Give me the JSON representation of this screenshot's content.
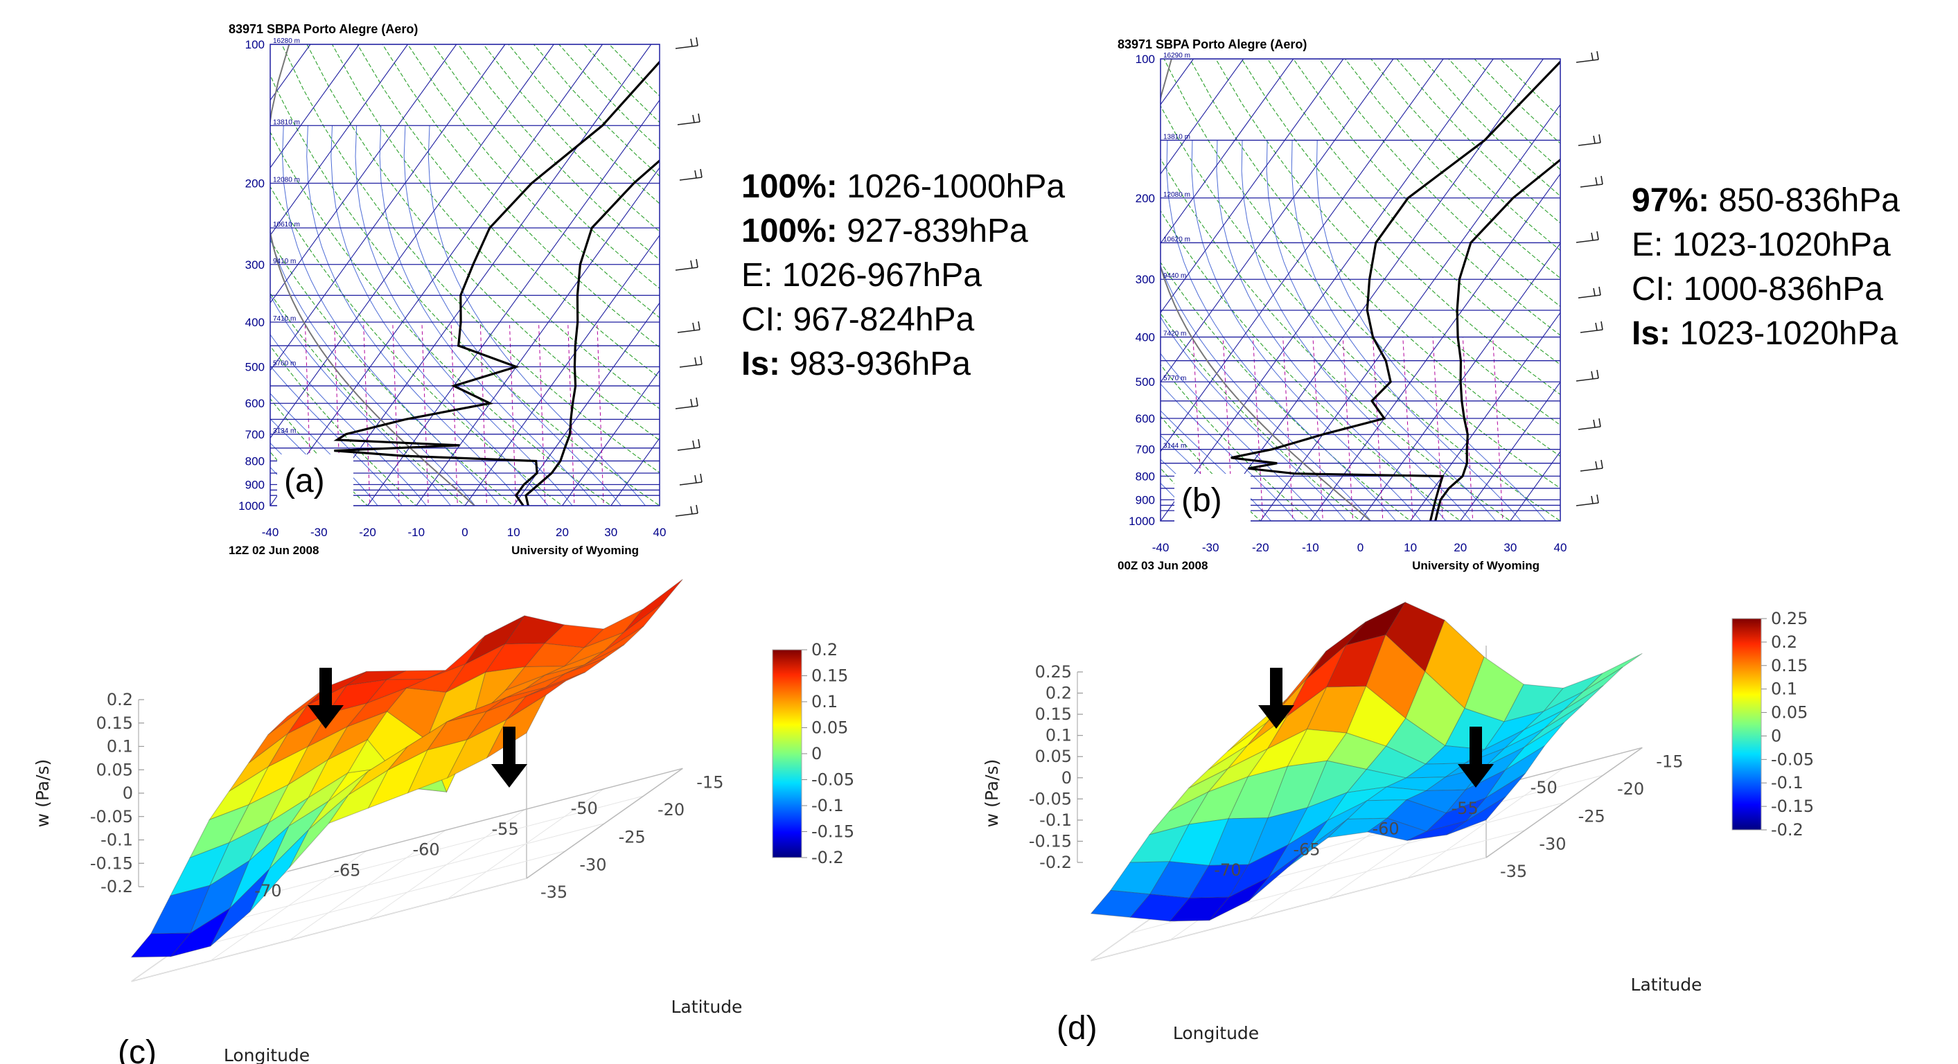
{
  "chart_data": [
    {
      "type": "skew-t",
      "panel": "(a)",
      "title": "83971 SBPA Porto Alegre (Aero)",
      "footer_left": "12Z 02 Jun 2008",
      "footer_right": "University of Wyoming",
      "pressure_ticks": [
        "100",
        "200",
        "300",
        "400",
        "500",
        "600",
        "700",
        "800",
        "900",
        "1000"
      ],
      "temperature_ticks": [
        "-40",
        "-30",
        "-20",
        "-10",
        "0",
        "10",
        "20",
        "30",
        "40"
      ],
      "height_labels": [
        "16280 m",
        "13810 m",
        "12080 m",
        "10610 m",
        "9410 m",
        "7410 m",
        "5760 m",
        "3134 m"
      ],
      "temperature_profile": [
        [
          1000,
          13
        ],
        [
          950,
          11
        ],
        [
          900,
          12
        ],
        [
          850,
          13
        ],
        [
          800,
          13
        ],
        [
          750,
          12
        ],
        [
          700,
          11
        ],
        [
          650,
          9
        ],
        [
          600,
          7
        ],
        [
          550,
          5
        ],
        [
          500,
          2
        ],
        [
          450,
          -1
        ],
        [
          400,
          -4
        ],
        [
          350,
          -8
        ],
        [
          300,
          -12
        ],
        [
          250,
          -15
        ],
        [
          200,
          -13
        ],
        [
          150,
          -8
        ],
        [
          100,
          -3
        ]
      ],
      "dewpoint_profile": [
        [
          1000,
          12
        ],
        [
          950,
          9
        ],
        [
          900,
          9
        ],
        [
          850,
          10
        ],
        [
          800,
          8
        ],
        [
          780,
          -20
        ],
        [
          760,
          -35
        ],
        [
          740,
          -10
        ],
        [
          720,
          -36
        ],
        [
          700,
          -35
        ],
        [
          650,
          -25
        ],
        [
          600,
          -10
        ],
        [
          550,
          -20
        ],
        [
          500,
          -10
        ],
        [
          450,
          -25
        ],
        [
          400,
          -28
        ],
        [
          350,
          -32
        ],
        [
          300,
          -34
        ],
        [
          250,
          -36
        ],
        [
          200,
          -34
        ],
        [
          150,
          -28
        ],
        [
          100,
          -25
        ]
      ],
      "annotations": [
        {
          "label": "100%:",
          "text": " 1026-1000hPa",
          "bold": true
        },
        {
          "label": "100%:",
          "text": " 927-839hPa",
          "bold": true
        },
        {
          "label": "E:",
          "text": " 1026-967hPa",
          "bold": false
        },
        {
          "label": "CI:",
          "text": " 967-824hPa",
          "bold": false
        },
        {
          "label": "Is:",
          "text": " 983-936hPa",
          "bold": true
        }
      ]
    },
    {
      "type": "skew-t",
      "panel": "(b)",
      "title": "83971 SBPA Porto Alegre (Aero)",
      "footer_left": "00Z 03 Jun 2008",
      "footer_right": "University of Wyoming",
      "pressure_ticks": [
        "100",
        "200",
        "300",
        "400",
        "500",
        "600",
        "700",
        "800",
        "900",
        "1000"
      ],
      "temperature_ticks": [
        "-40",
        "-30",
        "-20",
        "-10",
        "0",
        "10",
        "20",
        "30",
        "40"
      ],
      "height_labels": [
        "16290 m",
        "13810 m",
        "12080 m",
        "10620 m",
        "9440 m",
        "7420 m",
        "5770 m",
        "3144 m"
      ],
      "temperature_profile": [
        [
          1000,
          15
        ],
        [
          950,
          14
        ],
        [
          900,
          13
        ],
        [
          850,
          13
        ],
        [
          800,
          14
        ],
        [
          750,
          13
        ],
        [
          700,
          11
        ],
        [
          650,
          9
        ],
        [
          600,
          6
        ],
        [
          550,
          3
        ],
        [
          500,
          0
        ],
        [
          450,
          -3
        ],
        [
          400,
          -7
        ],
        [
          350,
          -11
        ],
        [
          300,
          -15
        ],
        [
          250,
          -18
        ],
        [
          200,
          -16
        ],
        [
          150,
          -10
        ],
        [
          100,
          -4
        ]
      ],
      "dewpoint_profile": [
        [
          1000,
          14
        ],
        [
          950,
          13
        ],
        [
          900,
          12
        ],
        [
          850,
          11
        ],
        [
          800,
          10
        ],
        [
          790,
          -20
        ],
        [
          770,
          -30
        ],
        [
          750,
          -25
        ],
        [
          730,
          -35
        ],
        [
          700,
          -28
        ],
        [
          650,
          -20
        ],
        [
          600,
          -10
        ],
        [
          550,
          -15
        ],
        [
          500,
          -14
        ],
        [
          450,
          -18
        ],
        [
          400,
          -24
        ],
        [
          350,
          -29
        ],
        [
          300,
          -33
        ],
        [
          250,
          -37
        ],
        [
          200,
          -37
        ],
        [
          150,
          -30
        ],
        [
          100,
          -26
        ]
      ],
      "annotations": [
        {
          "label": "97%:",
          "text": " 850-836hPa",
          "bold": true
        },
        {
          "label": "E:",
          "text": " 1023-1020hPa",
          "bold": false
        },
        {
          "label": "CI:",
          "text": " 1000-836hPa",
          "bold": false
        },
        {
          "label": "Is:",
          "text": " 1023-1020hPa",
          "bold": true
        }
      ]
    },
    {
      "type": "surface3d",
      "panel": "(c)",
      "zlabel": "w (Pa/s)",
      "xlabel": "Longitude",
      "ylabel": "Latitude",
      "zticks": [
        "0.2",
        "0.15",
        "0.1",
        "0.05",
        "0",
        "-0.05",
        "-0.1",
        "-0.15",
        "-0.2"
      ],
      "xticks": [
        "-70",
        "-65",
        "-60",
        "-55",
        "-50"
      ],
      "yticks": [
        "-15",
        "-20",
        "-25",
        "-30",
        "-35"
      ],
      "colorbar_ticks": [
        "0.2",
        "0.15",
        "0.1",
        "0.05",
        "0",
        "-0.05",
        "-0.1",
        "-0.15",
        "-0.2"
      ],
      "zlim": [
        -0.2,
        0.2
      ],
      "surface": {
        "type": "grid",
        "longitudes": [
          -70,
          -67.5,
          -65,
          -62.5,
          -60,
          -57.5,
          -55,
          -52.5,
          -50,
          -47.5,
          -45
        ],
        "latitudes": [
          -15,
          -17.5,
          -20,
          -22.5,
          -25,
          -27.5,
          -30,
          -32.5,
          -35
        ],
        "w": [
          [
            0.12,
            0.16,
            0.17,
            0.15,
            0.13,
            0.18,
            0.2,
            0.16,
            0.13,
            0.15,
            0.19
          ],
          [
            0.11,
            0.15,
            0.17,
            0.16,
            0.14,
            0.15,
            0.17,
            0.15,
            0.12,
            0.13,
            0.17
          ],
          [
            0.08,
            0.12,
            0.14,
            0.14,
            0.15,
            0.12,
            0.14,
            0.13,
            0.11,
            0.12,
            0.15
          ],
          [
            0.05,
            0.08,
            0.1,
            0.12,
            0.13,
            0.05,
            0.02,
            0.11,
            0.12,
            0.12,
            0.14
          ],
          [
            0.02,
            0.03,
            0.05,
            0.08,
            0.1,
            -0.02,
            -0.05,
            0.1,
            0.12,
            0.13,
            0.14
          ],
          [
            -0.03,
            -0.02,
            0.0,
            0.03,
            0.06,
            0.05,
            0.08,
            0.12,
            0.13,
            0.13,
            0.14
          ],
          [
            -0.08,
            -0.08,
            -0.05,
            0.0,
            0.03,
            0.07,
            0.1,
            0.13,
            0.13,
            0.14,
            0.15
          ],
          [
            -0.13,
            -0.15,
            -0.12,
            -0.06,
            0.0,
            0.05,
            0.08,
            0.1,
            0.1,
            0.12,
            0.15
          ],
          [
            -0.15,
            -0.17,
            -0.17,
            -0.12,
            -0.05,
            0.02,
            0.03,
            0.04,
            0.05,
            0.07,
            0.1
          ]
        ]
      },
      "arrows": 2
    },
    {
      "type": "surface3d",
      "panel": "(d)",
      "zlabel": "w (Pa/s)",
      "xlabel": "Longitude",
      "ylabel": "Latitude",
      "zticks": [
        "0.25",
        "0.2",
        "0.15",
        "0.1",
        "0.05",
        "0",
        "-0.05",
        "-0.1",
        "-0.15",
        "-0.2"
      ],
      "xticks": [
        "-70",
        "-65",
        "-60",
        "-55",
        "-50"
      ],
      "yticks": [
        "-15",
        "-20",
        "-25",
        "-30",
        "-35"
      ],
      "colorbar_ticks": [
        "0.25",
        "0.2",
        "0.15",
        "0.1",
        "0.05",
        "0",
        "-0.05",
        "-0.1",
        "-0.15",
        "-0.2"
      ],
      "zlim": [
        -0.2,
        0.25
      ],
      "surface": {
        "type": "grid",
        "longitudes": [
          -70,
          -67.5,
          -65,
          -62.5,
          -60,
          -57.5,
          -55,
          -52.5,
          -50,
          -47.5,
          -45
        ],
        "latitudes": [
          -15,
          -17.5,
          -20,
          -22.5,
          -25,
          -27.5,
          -30,
          -32.5,
          -35
        ],
        "w": [
          [
            0.05,
            0.1,
            0.18,
            0.22,
            0.24,
            0.18,
            0.08,
            0.0,
            -0.03,
            -0.02,
            0.0
          ],
          [
            0.04,
            0.08,
            0.15,
            0.2,
            0.2,
            0.1,
            0.0,
            -0.05,
            -0.05,
            -0.03,
            0.0
          ],
          [
            0.03,
            0.06,
            0.1,
            0.14,
            0.12,
            0.03,
            -0.05,
            -0.08,
            -0.06,
            -0.04,
            -0.01
          ],
          [
            0.02,
            0.04,
            0.06,
            0.08,
            0.05,
            0.0,
            -0.06,
            -0.08,
            -0.07,
            -0.05,
            -0.02
          ],
          [
            0.0,
            0.02,
            0.03,
            0.03,
            0.02,
            -0.02,
            -0.06,
            -0.08,
            -0.08,
            -0.06,
            -0.03
          ],
          [
            -0.02,
            -0.02,
            -0.03,
            -0.05,
            -0.05,
            -0.04,
            -0.05,
            -0.08,
            -0.1,
            -0.08,
            -0.05
          ],
          [
            -0.05,
            -0.07,
            -0.1,
            -0.12,
            -0.1,
            -0.07,
            -0.05,
            -0.07,
            -0.12,
            -0.11,
            -0.08
          ],
          [
            -0.08,
            -0.11,
            -0.14,
            -0.16,
            -0.14,
            -0.1,
            -0.06,
            -0.08,
            -0.13,
            -0.13,
            -0.1
          ],
          [
            -0.1,
            -0.13,
            -0.16,
            -0.18,
            -0.16,
            -0.11,
            -0.07,
            -0.08,
            -0.12,
            -0.13,
            -0.12
          ]
        ]
      },
      "arrows": 2
    }
  ]
}
